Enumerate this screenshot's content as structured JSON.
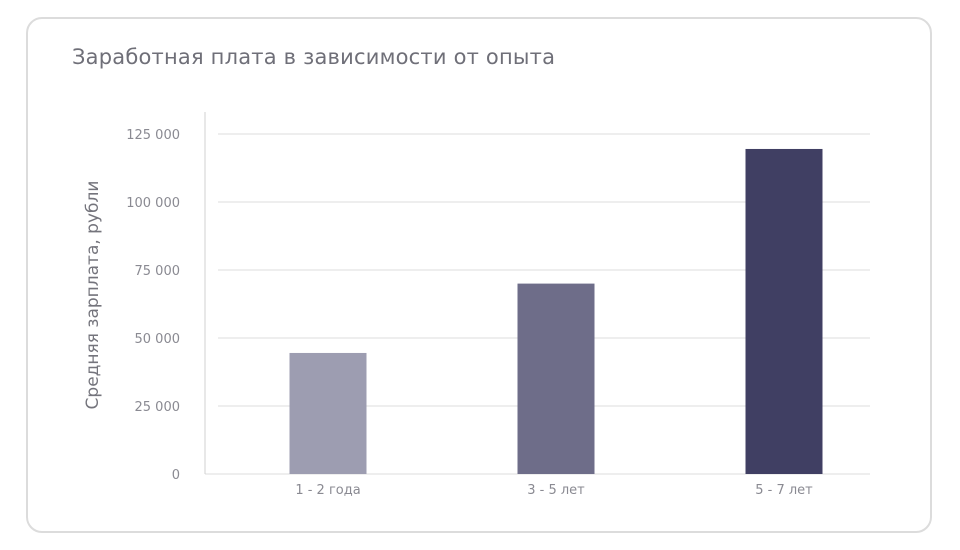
{
  "chart_data": {
    "type": "bar",
    "title": "Заработная плата в зависимости от опыта",
    "xlabel": "",
    "ylabel": "Средняя зарплата, рубли",
    "categories": [
      "1 - 2 года",
      "3 - 5 лет",
      "5 - 7 лет"
    ],
    "values": [
      44500,
      70000,
      119500
    ],
    "ylim": [
      0,
      125000
    ],
    "yticks": [
      0,
      25000,
      50000,
      75000,
      100000,
      125000
    ],
    "ytick_labels": [
      "0",
      "25 000",
      "50 000",
      "75 000",
      "100 000",
      "125 000"
    ],
    "grid": true,
    "legend": "none",
    "bar_colors": [
      "#9d9db1",
      "#6e6d89",
      "#403f63"
    ],
    "grid_color": "#dcdcdc",
    "axis_color": "#d0d0d0"
  }
}
